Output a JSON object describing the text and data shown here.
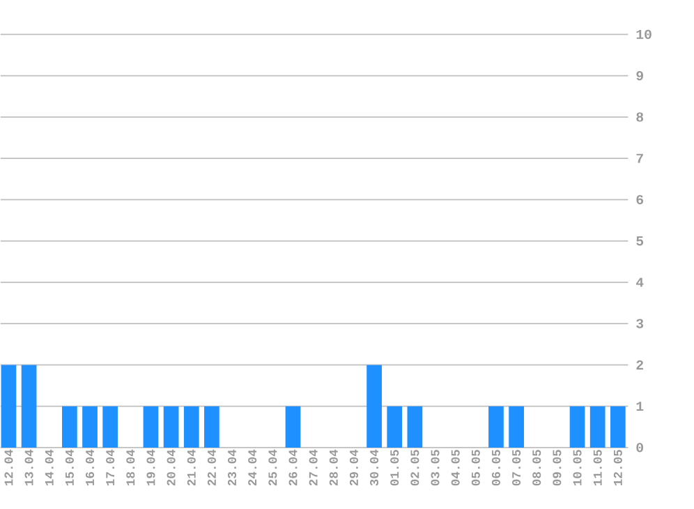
{
  "chart_data": {
    "type": "bar",
    "categories": [
      "12.04",
      "13.04",
      "14.04",
      "15.04",
      "16.04",
      "17.04",
      "18.04",
      "19.04",
      "20.04",
      "21.04",
      "22.04",
      "23.04",
      "24.04",
      "25.04",
      "26.04",
      "27.04",
      "28.04",
      "29.04",
      "30.04",
      "01.05",
      "02.05",
      "03.05",
      "04.05",
      "05.05",
      "06.05",
      "07.05",
      "08.05",
      "09.05",
      "10.05",
      "11.05",
      "12.05"
    ],
    "values": [
      2,
      2,
      0,
      1,
      1,
      1,
      0,
      1,
      1,
      1,
      1,
      0,
      0,
      0,
      1,
      0,
      0,
      0,
      2,
      1,
      1,
      0,
      0,
      0,
      1,
      1,
      0,
      0,
      1,
      1,
      1
    ],
    "color": "#1e90ff",
    "ylim": [
      0,
      10
    ],
    "yticks": [
      0,
      1,
      2,
      3,
      4,
      5,
      6,
      7,
      8,
      9,
      10
    ],
    "grid": "y"
  }
}
